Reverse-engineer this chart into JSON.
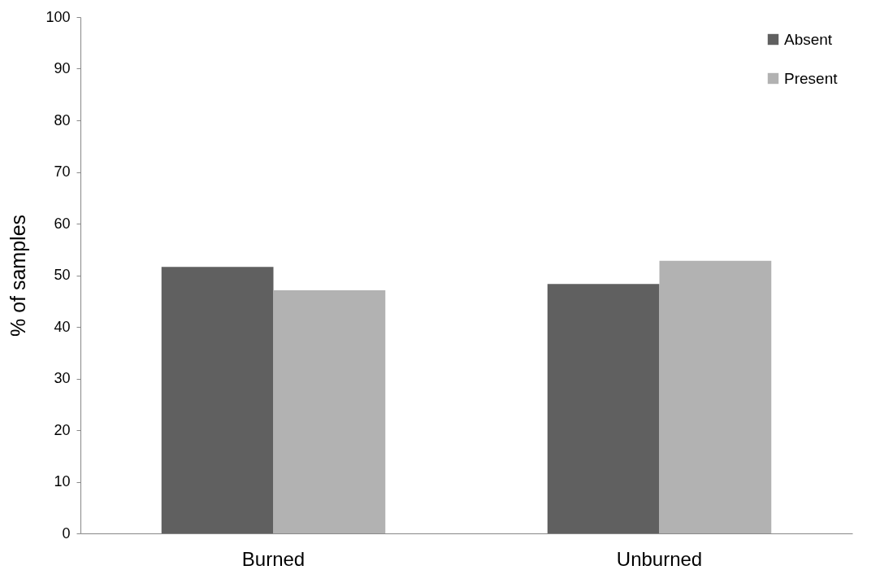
{
  "chart_data": {
    "type": "bar",
    "ylabel": "% of samples",
    "categories": [
      "Burned",
      "Unburned"
    ],
    "series": [
      {
        "name": "Absent",
        "color": "#606060",
        "values": [
          51.6,
          48.3
        ]
      },
      {
        "name": "Present",
        "color": "#b2b2b2",
        "values": [
          47.1,
          52.8
        ]
      }
    ],
    "ylim": [
      0,
      100
    ],
    "yticks": [
      0,
      10,
      20,
      30,
      40,
      50,
      60,
      70,
      80,
      90,
      100
    ],
    "grid": false,
    "legend": "top right"
  }
}
